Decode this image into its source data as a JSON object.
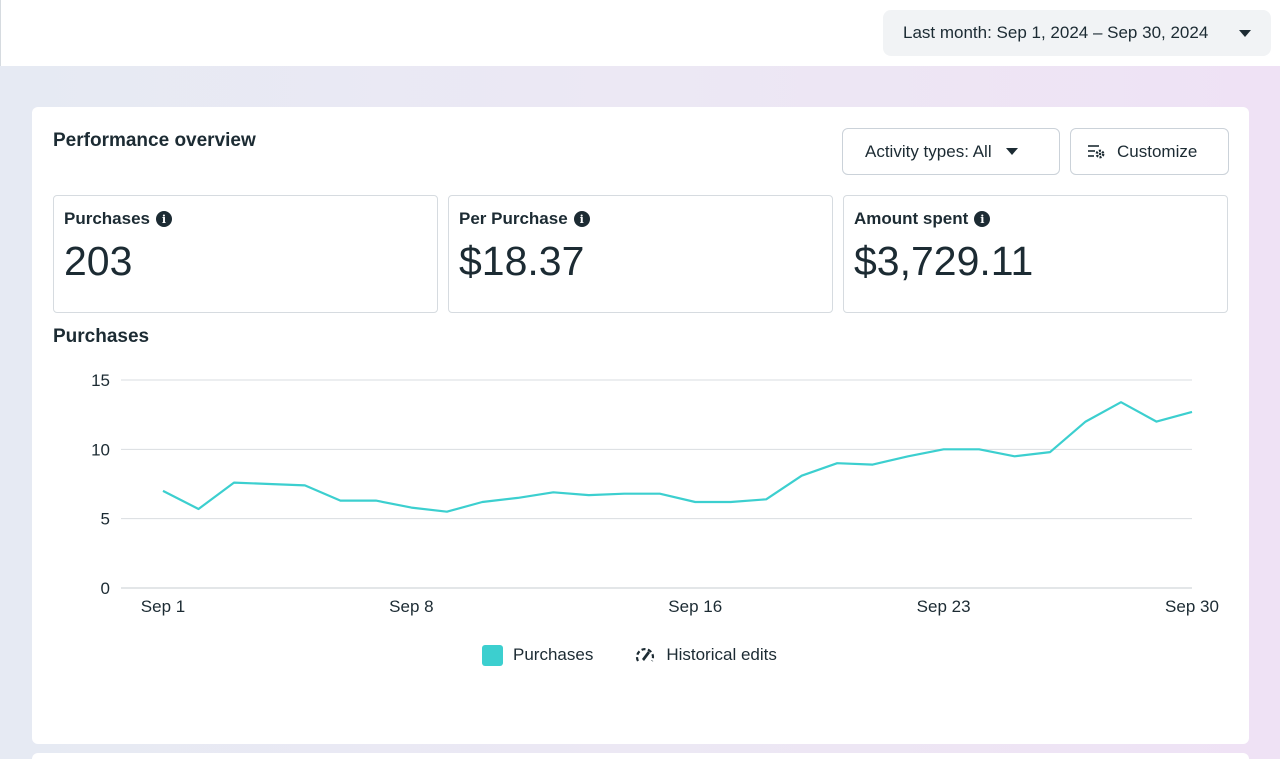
{
  "header": {
    "date_range_label": "Last month: Sep 1, 2024 – Sep 30, 2024"
  },
  "overview": {
    "title": "Performance overview",
    "activity_button": "Activity types: All",
    "customize_button": "Customize"
  },
  "metrics": [
    {
      "label": "Purchases",
      "value": "203"
    },
    {
      "label": "Per Purchase",
      "value": "$18.37"
    },
    {
      "label": "Amount spent",
      "value": "$3,729.11"
    }
  ],
  "chart": {
    "title": "Purchases",
    "legend": {
      "series": "Purchases",
      "historical": "Historical edits"
    }
  },
  "colors": {
    "series": "#3ccfcf",
    "grid": "#dadde1",
    "text": "#1c2b33"
  },
  "icons": {
    "caret": "chevron-down-icon",
    "customize": "settings-sliders-icon",
    "info": "info-icon",
    "historical": "history-edit-icon"
  },
  "chart_data": {
    "type": "line",
    "title": "Purchases",
    "xlabel": "",
    "ylabel": "",
    "ylim": [
      0,
      15
    ],
    "yticks": [
      0,
      5,
      10,
      15
    ],
    "x_tick_labels": [
      "Sep 1",
      "Sep 8",
      "Sep 16",
      "Sep 23",
      "Sep 30"
    ],
    "x_tick_days": [
      1,
      8,
      16,
      23,
      30
    ],
    "x": [
      1,
      2,
      3,
      4,
      5,
      6,
      7,
      8,
      9,
      10,
      11,
      12,
      13,
      14,
      15,
      16,
      17,
      18,
      19,
      20,
      21,
      22,
      23,
      24,
      25,
      26,
      27,
      28,
      29,
      30
    ],
    "series": [
      {
        "name": "Purchases",
        "values": [
          7.0,
          5.7,
          7.6,
          7.5,
          7.4,
          6.3,
          6.3,
          5.8,
          5.5,
          6.2,
          6.5,
          6.9,
          6.7,
          6.8,
          6.8,
          6.2,
          6.2,
          6.4,
          8.1,
          9.0,
          8.9,
          9.5,
          10.0,
          10.0,
          9.5,
          9.8,
          12.0,
          13.4,
          12.0,
          12.7
        ]
      }
    ],
    "grid": true,
    "legend_position": "bottom-center"
  }
}
